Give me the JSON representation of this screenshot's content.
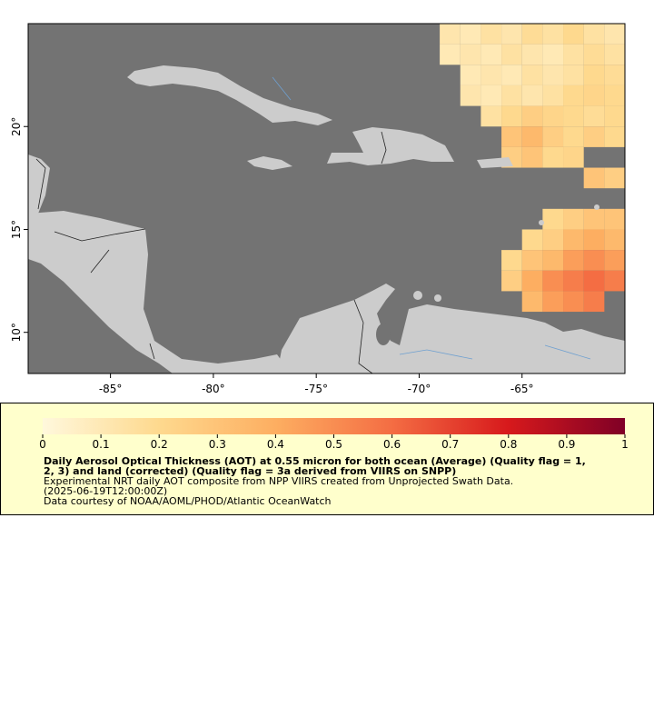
{
  "map": {
    "xlim": [
      -89,
      -60
    ],
    "ylim": [
      8,
      25
    ],
    "xticks": [
      {
        "value": -85,
        "label": "-85°"
      },
      {
        "value": -80,
        "label": "-80°"
      },
      {
        "value": -75,
        "label": "-75°"
      },
      {
        "value": -70,
        "label": "-70°"
      },
      {
        "value": -65,
        "label": "-65°"
      }
    ],
    "yticks": [
      {
        "value": 10,
        "label": "10°"
      },
      {
        "value": 15,
        "label": "15°"
      },
      {
        "value": 20,
        "label": "20°"
      }
    ],
    "ocean_color": "#737373",
    "land_color": "#cccccc",
    "aot": {
      "lon": [
        -68.5,
        -67.5,
        -66.5,
        -65.5,
        -64.5,
        -63.5,
        -62.5,
        -61.5,
        -60.5,
        -68.5,
        -67.5,
        -66.5,
        -65.5,
        -64.5,
        -63.5,
        -62.5,
        -61.5,
        -60.5,
        -67.5,
        -66.5,
        -65.5,
        -64.5,
        -63.5,
        -62.5,
        -61.5,
        -60.5,
        -67.5,
        -66.5,
        -65.5,
        -64.5,
        -63.5,
        -62.5,
        -61.5,
        -60.5,
        -66.5,
        -65.5,
        -64.5,
        -63.5,
        -62.5,
        -61.5,
        -60.5,
        -65.5,
        -64.5,
        -63.5,
        -62.5,
        -61.5,
        -60.5,
        -65.5,
        -64.5,
        -63.5,
        -62.5,
        -61.5,
        -60.5,
        -63.5,
        -62.5,
        -61.5,
        -60.5,
        -64.5,
        -63.5,
        -62.5,
        -61.5,
        -60.5,
        -65.5,
        -64.5,
        -63.5,
        -62.5,
        -61.5,
        -60.5,
        -65.5,
        -64.5,
        -63.5,
        -62.5,
        -61.5,
        -60.5,
        -64.5,
        -63.5,
        -62.5,
        -61.5
      ],
      "lat": [
        24.5,
        24.5,
        24.5,
        24.5,
        24.5,
        24.5,
        24.5,
        24.5,
        24.5,
        23.5,
        23.5,
        23.5,
        23.5,
        23.5,
        23.5,
        23.5,
        23.5,
        23.5,
        22.5,
        22.5,
        22.5,
        22.5,
        22.5,
        22.5,
        22.5,
        22.5,
        21.5,
        21.5,
        21.5,
        21.5,
        21.5,
        21.5,
        21.5,
        21.5,
        20.5,
        20.5,
        20.5,
        20.5,
        20.5,
        20.5,
        20.5,
        19.5,
        19.5,
        19.5,
        19.5,
        19.5,
        19.5,
        18.5,
        18.5,
        18.5,
        18.5,
        17.5,
        17.5,
        15.5,
        15.5,
        15.5,
        15.5,
        14.5,
        14.5,
        14.5,
        14.5,
        14.5,
        13.5,
        13.5,
        13.5,
        13.5,
        13.5,
        13.5,
        12.5,
        12.5,
        12.5,
        12.5,
        12.5,
        12.5,
        11.5,
        11.5,
        11.5,
        11.5
      ],
      "values": [
        0.12,
        0.1,
        0.15,
        0.12,
        0.18,
        0.15,
        0.2,
        0.15,
        0.12,
        0.1,
        0.12,
        0.1,
        0.15,
        0.12,
        0.1,
        0.15,
        0.18,
        0.15,
        0.1,
        0.12,
        0.1,
        0.15,
        0.12,
        0.15,
        0.2,
        0.18,
        0.12,
        0.1,
        0.15,
        0.12,
        0.15,
        0.2,
        0.22,
        0.2,
        0.15,
        0.2,
        0.25,
        0.22,
        0.2,
        0.18,
        0.2,
        0.3,
        0.35,
        0.25,
        0.2,
        0.25,
        0.2,
        0.25,
        0.3,
        0.2,
        0.22,
        0.3,
        0.25,
        0.2,
        0.25,
        0.3,
        0.3,
        0.2,
        0.25,
        0.35,
        0.4,
        0.35,
        0.2,
        0.3,
        0.35,
        0.45,
        0.5,
        0.45,
        0.25,
        0.4,
        0.5,
        0.55,
        0.6,
        0.55,
        0.35,
        0.45,
        0.5,
        0.55
      ]
    }
  },
  "colorbar": {
    "lim": [
      0,
      1
    ],
    "ticks": [
      0,
      0.1,
      0.2,
      0.3,
      0.4,
      0.5,
      0.6,
      0.7,
      0.8,
      0.9,
      1
    ],
    "colormap": [
      "#fff8dc",
      "#fed98e",
      "#fdae61",
      "#f46d43",
      "#d7191c",
      "#7f0026"
    ],
    "background": "#ffffcc"
  },
  "legend": {
    "title_lines": [
      "Daily Aerosol Optical Thickness (AOT) at 0.55 micron for both ocean (Average) (Quality flag = 1,",
      "2, 3) and land (corrected) (Quality flag = 3a derived from VIIRS on SNPP)"
    ],
    "lines": [
      "Experimental NRT daily AOT composite from NPP VIIRS created from Unprojected Swath Data.",
      "(2025-06-19T12:00:00Z)",
      "Data courtesy of NOAA/AOML/PHOD/Atlantic OceanWatch"
    ]
  }
}
